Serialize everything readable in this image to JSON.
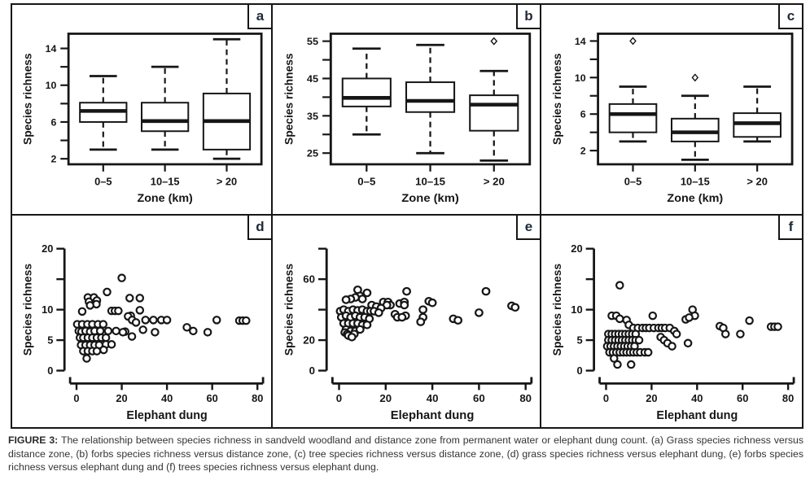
{
  "caption": {
    "label": "FIGURE 3:",
    "text": "The relationship between species richness in sandveld woodland and distance zone from permanent water or elephant dung count. (a) Grass species richness versus distance zone, (b) forbs species richness versus distance zone, (c) tree species richness versus distance zone, (d) grass species richness versus elephant dung, (e) forbs species richness versus elephant dung and (f) trees species richness versus elephant dung."
  },
  "colors": {
    "ink": "#161616",
    "panel_letter": "#1e2a38",
    "caption_text": "#333333",
    "background": "#ffffff"
  },
  "chart_data": [
    {
      "panel": "a",
      "type": "box",
      "xlabel": "Zone (km)",
      "ylabel": "Species richness",
      "categories": [
        "0–5",
        "10–15",
        "> 20"
      ],
      "yticks": [
        2,
        6,
        10,
        14
      ],
      "minor_yticks": [
        4,
        8,
        12
      ],
      "ylim": [
        1.4,
        15.6
      ],
      "boxes": [
        {
          "category": "0–5",
          "whisker_low": 3,
          "q1": 6,
          "median": 7.2,
          "q3": 8.1,
          "whisker_high": 11,
          "outliers": []
        },
        {
          "category": "10–15",
          "whisker_low": 3,
          "q1": 5,
          "median": 6.1,
          "q3": 8.1,
          "whisker_high": 12,
          "outliers": []
        },
        {
          "category": "> 20",
          "whisker_low": 2,
          "q1": 3,
          "median": 6.1,
          "q3": 9.1,
          "whisker_high": 15,
          "outliers": []
        }
      ]
    },
    {
      "panel": "b",
      "type": "box",
      "xlabel": "Zone (km)",
      "ylabel": "Species richness",
      "categories": [
        "0–5",
        "10–15",
        "> 20"
      ],
      "yticks": [
        25,
        35,
        45,
        55
      ],
      "minor_yticks": [
        30,
        40,
        50
      ],
      "ylim": [
        22,
        57
      ],
      "boxes": [
        {
          "category": "0–5",
          "whisker_low": 30,
          "q1": 37.5,
          "median": 39.8,
          "q3": 45,
          "whisker_high": 53,
          "outliers": []
        },
        {
          "category": "10–15",
          "whisker_low": 25,
          "q1": 36,
          "median": 39,
          "q3": 44,
          "whisker_high": 54,
          "outliers": []
        },
        {
          "category": "> 20",
          "whisker_low": 23,
          "q1": 31,
          "median": 38,
          "q3": 40.5,
          "whisker_high": 47,
          "outliers": [
            55
          ]
        }
      ]
    },
    {
      "panel": "c",
      "type": "box",
      "xlabel": "Zone (km)",
      "ylabel": "Species richness",
      "categories": [
        "0–5",
        "10–15",
        "> 20"
      ],
      "yticks": [
        2,
        6,
        10,
        14
      ],
      "minor_yticks": [
        4,
        8,
        12
      ],
      "ylim": [
        0.5,
        14.8
      ],
      "boxes": [
        {
          "category": "0–5",
          "whisker_low": 3,
          "q1": 4,
          "median": 6,
          "q3": 7.1,
          "whisker_high": 9,
          "outliers": [
            14
          ]
        },
        {
          "category": "10–15",
          "whisker_low": 1,
          "q1": 3,
          "median": 4,
          "q3": 5.5,
          "whisker_high": 8,
          "outliers": [
            10
          ]
        },
        {
          "category": "> 20",
          "whisker_low": 3,
          "q1": 3.5,
          "median": 5,
          "q3": 6.1,
          "whisker_high": 9,
          "outliers": []
        }
      ]
    },
    {
      "panel": "d",
      "type": "scatter",
      "xlabel": "Elephant dung",
      "ylabel": "Species richness",
      "xticks": [
        0,
        20,
        40,
        60,
        80
      ],
      "xtick_labels": [
        "0",
        "20",
        "40",
        "60",
        "80"
      ],
      "xlim": [
        0,
        80
      ],
      "yticks": [
        0,
        5,
        10,
        15,
        20
      ],
      "ytick_labels": [
        "0",
        "5",
        "10",
        "",
        "20"
      ],
      "ylim": [
        0,
        20
      ],
      "points": [
        [
          20,
          15.2
        ],
        [
          13.5,
          12.9
        ],
        [
          5,
          12
        ],
        [
          7.7,
          12
        ],
        [
          23.5,
          11.9
        ],
        [
          28,
          11.9
        ],
        [
          9,
          11.5
        ],
        [
          5.5,
          11.3
        ],
        [
          8.8,
          10.9
        ],
        [
          6,
          10.7
        ],
        [
          2.5,
          9.7
        ],
        [
          15.5,
          9.8
        ],
        [
          17,
          9.8
        ],
        [
          18.5,
          9.8
        ],
        [
          28,
          9.9
        ],
        [
          24,
          9
        ],
        [
          22.8,
          8.9
        ],
        [
          24.6,
          8.3
        ],
        [
          26.3,
          7.9
        ],
        [
          30.5,
          8.3
        ],
        [
          34,
          8.3
        ],
        [
          37.5,
          8.3
        ],
        [
          40,
          8.3
        ],
        [
          62,
          8.3
        ],
        [
          72,
          8.2
        ],
        [
          73.5,
          8.2
        ],
        [
          75,
          8.2
        ],
        [
          0.3,
          7.6
        ],
        [
          2.5,
          7.6
        ],
        [
          4.8,
          7.6
        ],
        [
          7,
          7.6
        ],
        [
          9.5,
          7.6
        ],
        [
          11.8,
          7.6
        ],
        [
          1,
          6.5
        ],
        [
          2.2,
          6.4
        ],
        [
          4,
          6.5
        ],
        [
          6,
          6.4
        ],
        [
          8,
          6.5
        ],
        [
          10.5,
          6.5
        ],
        [
          14,
          6.5
        ],
        [
          17.5,
          6.5
        ],
        [
          21.5,
          6.4
        ],
        [
          1.5,
          5.4
        ],
        [
          3,
          5.4
        ],
        [
          5,
          5.4
        ],
        [
          7,
          5.4
        ],
        [
          9,
          5.4
        ],
        [
          11,
          5.4
        ],
        [
          13,
          5.4
        ],
        [
          20.5,
          6.3
        ],
        [
          24.5,
          5.6
        ],
        [
          29.4,
          6.7
        ],
        [
          34.7,
          6.3
        ],
        [
          48.8,
          7.1
        ],
        [
          51.6,
          6.5
        ],
        [
          58,
          6.3
        ],
        [
          2,
          4.2
        ],
        [
          4,
          4.2
        ],
        [
          6,
          4.2
        ],
        [
          8,
          4.2
        ],
        [
          10,
          4.2
        ],
        [
          13,
          4.3
        ],
        [
          15.5,
          4.3
        ],
        [
          3,
          3.2
        ],
        [
          5,
          3.2
        ],
        [
          7,
          3.2
        ],
        [
          9,
          3.2
        ],
        [
          12,
          3.4
        ],
        [
          4.5,
          2
        ]
      ]
    },
    {
      "panel": "e",
      "type": "scatter",
      "xlabel": "Elephant dung",
      "ylabel": "Species richness",
      "xticks": [
        0,
        20,
        40,
        60,
        80
      ],
      "xtick_labels": [
        "0",
        "20",
        "40",
        "60",
        "80"
      ],
      "xlim": [
        0,
        80
      ],
      "yticks": [
        0,
        20,
        40,
        60,
        80
      ],
      "ytick_labels": [
        "0",
        "20",
        "",
        "60",
        ""
      ],
      "ylim": [
        0,
        80
      ],
      "points": [
        [
          8,
          53
        ],
        [
          12,
          51
        ],
        [
          29,
          52
        ],
        [
          63,
          52
        ],
        [
          9,
          49
        ],
        [
          7,
          48
        ],
        [
          5,
          47
        ],
        [
          3,
          46.5
        ],
        [
          10,
          47
        ],
        [
          38.5,
          45.5
        ],
        [
          40,
          44.5
        ],
        [
          19,
          45
        ],
        [
          21,
          45
        ],
        [
          26,
          44
        ],
        [
          28,
          45
        ],
        [
          22,
          43
        ],
        [
          28,
          43
        ],
        [
          20.5,
          43
        ],
        [
          14,
          43
        ],
        [
          16,
          42
        ],
        [
          18,
          41
        ],
        [
          74,
          42.5
        ],
        [
          75.5,
          41.5
        ],
        [
          36,
          40
        ],
        [
          60,
          38
        ],
        [
          0.5,
          39
        ],
        [
          2,
          40
        ],
        [
          4,
          39
        ],
        [
          6,
          40
        ],
        [
          8,
          39.5
        ],
        [
          10,
          40
        ],
        [
          12,
          39
        ],
        [
          13.5,
          39
        ],
        [
          15,
          39
        ],
        [
          17,
          38
        ],
        [
          24,
          37
        ],
        [
          28.5,
          36
        ],
        [
          25,
          35
        ],
        [
          27,
          35
        ],
        [
          36,
          35
        ],
        [
          1,
          35
        ],
        [
          3,
          36
        ],
        [
          5,
          35
        ],
        [
          7,
          36
        ],
        [
          9,
          35
        ],
        [
          11,
          35
        ],
        [
          13,
          34
        ],
        [
          35,
          32
        ],
        [
          49,
          34
        ],
        [
          51,
          33
        ],
        [
          2,
          31
        ],
        [
          4,
          31
        ],
        [
          6,
          31
        ],
        [
          8,
          31
        ],
        [
          10,
          30
        ],
        [
          12,
          30
        ],
        [
          3,
          27
        ],
        [
          5,
          26
        ],
        [
          7,
          26
        ],
        [
          9,
          27
        ],
        [
          2.5,
          25
        ],
        [
          3.5,
          24
        ],
        [
          6.5,
          24
        ],
        [
          4,
          23
        ],
        [
          5.5,
          22
        ]
      ]
    },
    {
      "panel": "f",
      "type": "scatter",
      "xlabel": "Elephant dung",
      "ylabel": "Species richness",
      "xticks": [
        0,
        20,
        40,
        60,
        80
      ],
      "xtick_labels": [
        "0",
        "20",
        "40",
        "60",
        "80"
      ],
      "xlim": [
        0,
        80
      ],
      "yticks": [
        0,
        5,
        10,
        15,
        20
      ],
      "ytick_labels": [
        "0",
        "5",
        "10",
        "",
        "20"
      ],
      "ylim": [
        0,
        20
      ],
      "points": [
        [
          6,
          14
        ],
        [
          2.5,
          9
        ],
        [
          4.5,
          9
        ],
        [
          6,
          8.5
        ],
        [
          9,
          8.3
        ],
        [
          20.5,
          9
        ],
        [
          38,
          10
        ],
        [
          39,
          9
        ],
        [
          35,
          8.4
        ],
        [
          36.5,
          8.7
        ],
        [
          63,
          8.2
        ],
        [
          10,
          7.5
        ],
        [
          12,
          7
        ],
        [
          14,
          7
        ],
        [
          16,
          7
        ],
        [
          17.5,
          7
        ],
        [
          19,
          7
        ],
        [
          21,
          7
        ],
        [
          23,
          7
        ],
        [
          24.5,
          7
        ],
        [
          26,
          7
        ],
        [
          28,
          7
        ],
        [
          50,
          7.3
        ],
        [
          51.5,
          7
        ],
        [
          72.5,
          7.2
        ],
        [
          74,
          7.2
        ],
        [
          75.5,
          7.2
        ],
        [
          1,
          6
        ],
        [
          2.5,
          6
        ],
        [
          4,
          6
        ],
        [
          5.5,
          6
        ],
        [
          7,
          6
        ],
        [
          8.5,
          6
        ],
        [
          10,
          6
        ],
        [
          11.5,
          6
        ],
        [
          13,
          6
        ],
        [
          30,
          6.5
        ],
        [
          31,
          6
        ],
        [
          52.5,
          6
        ],
        [
          59,
          6
        ],
        [
          1,
          5
        ],
        [
          2.5,
          5
        ],
        [
          4,
          5
        ],
        [
          5.5,
          5
        ],
        [
          7,
          5
        ],
        [
          8.5,
          5
        ],
        [
          10,
          5
        ],
        [
          11.5,
          5
        ],
        [
          13,
          5
        ],
        [
          14.5,
          5
        ],
        [
          24,
          5.5
        ],
        [
          25.5,
          5
        ],
        [
          0.5,
          4
        ],
        [
          2,
          4
        ],
        [
          3.5,
          4
        ],
        [
          5,
          4
        ],
        [
          6.5,
          4
        ],
        [
          8,
          4
        ],
        [
          9.5,
          4
        ],
        [
          11,
          4
        ],
        [
          12.5,
          4
        ],
        [
          27,
          4.5
        ],
        [
          29,
          4
        ],
        [
          36,
          4.5
        ],
        [
          1.5,
          3
        ],
        [
          3,
          3
        ],
        [
          4.5,
          3
        ],
        [
          6,
          3
        ],
        [
          7.5,
          3
        ],
        [
          9,
          3
        ],
        [
          10.5,
          3
        ],
        [
          12,
          3
        ],
        [
          13.5,
          3
        ],
        [
          15,
          3
        ],
        [
          17,
          3
        ],
        [
          18.5,
          3
        ],
        [
          3.5,
          2
        ],
        [
          5,
          1
        ],
        [
          11,
          1
        ]
      ]
    }
  ]
}
